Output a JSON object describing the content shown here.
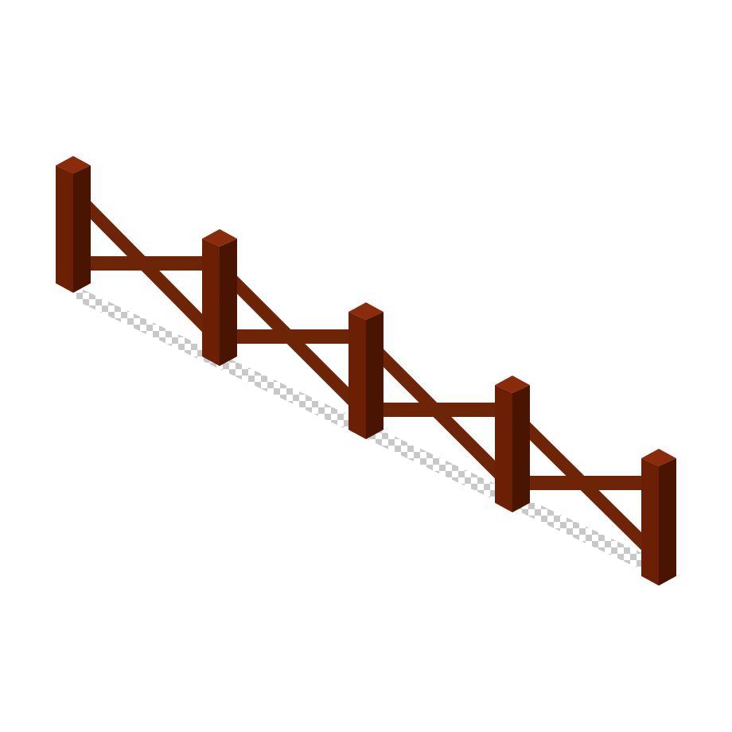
{
  "sprite": {
    "object": "isometric-fence",
    "post_count": 5,
    "rail_count": 4,
    "colors": {
      "background": "#ffffff",
      "post_front": "#6b2006",
      "post_side": "#4a1403",
      "post_top": "#8a2c0c",
      "rail": "#6e2406",
      "shadow": "#c8c8c8"
    }
  }
}
